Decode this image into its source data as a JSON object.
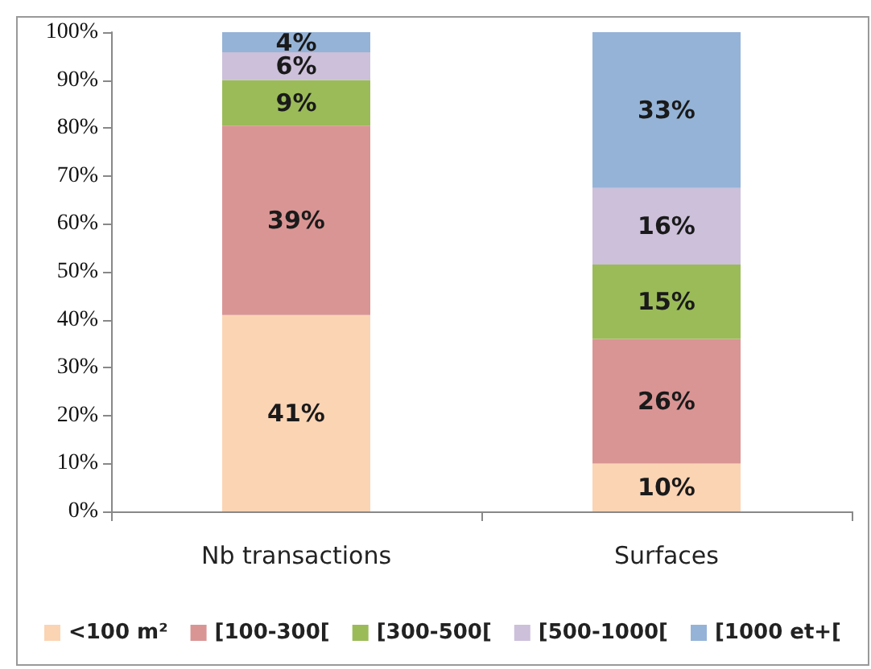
{
  "chart_data": {
    "type": "bar",
    "stacked": true,
    "categories": [
      "Nb transactions",
      "Surfaces"
    ],
    "series": [
      {
        "name": "<100 m²",
        "color": "#fbd4b4",
        "values": [
          41,
          10
        ],
        "value_labels": [
          "41%",
          "10%"
        ]
      },
      {
        "name": "[100-300[",
        "color": "#d99594",
        "values": [
          39.5,
          26
        ],
        "value_labels": [
          "39%",
          "26%"
        ]
      },
      {
        "name": "[300-500[",
        "color": "#9bbb59",
        "values": [
          9.5,
          15.5
        ],
        "value_labels": [
          "9%",
          "15%"
        ]
      },
      {
        "name": "[500-1000[",
        "color": "#ccc0da",
        "values": [
          5.8,
          16
        ],
        "value_labels": [
          "6%",
          "16%"
        ]
      },
      {
        "name": "[1000 et+[",
        "color": "#95b3d7",
        "values": [
          4.2,
          32.5
        ],
        "value_labels": [
          "4%",
          "33%"
        ]
      }
    ],
    "ylim": [
      0,
      100
    ],
    "yticks": [
      {
        "value": 0,
        "label": "0%"
      },
      {
        "value": 10,
        "label": "10%"
      },
      {
        "value": 20,
        "label": "20%"
      },
      {
        "value": 30,
        "label": "30%"
      },
      {
        "value": 40,
        "label": "40%"
      },
      {
        "value": 50,
        "label": "50%"
      },
      {
        "value": 60,
        "label": "60%"
      },
      {
        "value": 70,
        "label": "70%"
      },
      {
        "value": 80,
        "label": "80%"
      },
      {
        "value": 90,
        "label": "90%"
      },
      {
        "value": 100,
        "label": "100%"
      }
    ],
    "grid": false,
    "legend": "bottom"
  }
}
